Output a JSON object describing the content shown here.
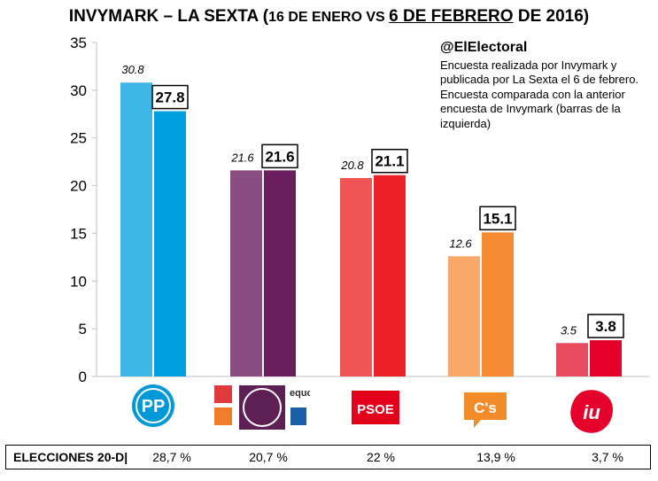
{
  "title": {
    "part1": "INVYMARK – LA SEXTA (",
    "part2": "16 DE ENERO VS ",
    "part3": "6 DE FEBRERO",
    "part4": " DE 2016)"
  },
  "note": {
    "handle": "@ElElectoral",
    "line1": "Encuesta realizada por Invymark y publicada por La Sexta el 6 de febrero.",
    "line2": "Encuesta comparada con la anterior encuesta de Invymark (barras de la izquierda)"
  },
  "logos": {
    "pp": "PP",
    "psoe": "PSOE",
    "cs": "C's",
    "iu": "iu",
    "podemos_small": "equo"
  },
  "footer": {
    "label": "ELECCIONES 20-D|",
    "values": [
      "28,7 %",
      "20,7 %",
      "22 %",
      "13,9 %",
      "3,7 %"
    ]
  },
  "chart_data": {
    "type": "bar",
    "categories": [
      "PP",
      "Podemos",
      "PSOE",
      "C's",
      "IU"
    ],
    "series": [
      {
        "values": [
          30.8,
          21.6,
          20.8,
          12.6,
          3.5
        ],
        "colors": [
          "#3fb7e6",
          "#8a4d82",
          "#f05656",
          "#f9a86a",
          "#e84a5f"
        ]
      },
      {
        "values": [
          27.8,
          21.6,
          21.1,
          15.1,
          3.8
        ],
        "colors": [
          "#009fe0",
          "#6b1e5e",
          "#ee2027",
          "#f58a33",
          "#e4002b"
        ]
      }
    ],
    "value_labels_old": [
      "30.8",
      "21.6",
      "20.8",
      "12.6",
      "3.5"
    ],
    "value_labels_new": [
      "27.8",
      "21.6",
      "21.1",
      "15.1",
      "3.8"
    ],
    "ylim": [
      0,
      35
    ],
    "yticks": [
      "0",
      "5",
      "10",
      "15",
      "20",
      "25",
      "30",
      "35"
    ]
  }
}
